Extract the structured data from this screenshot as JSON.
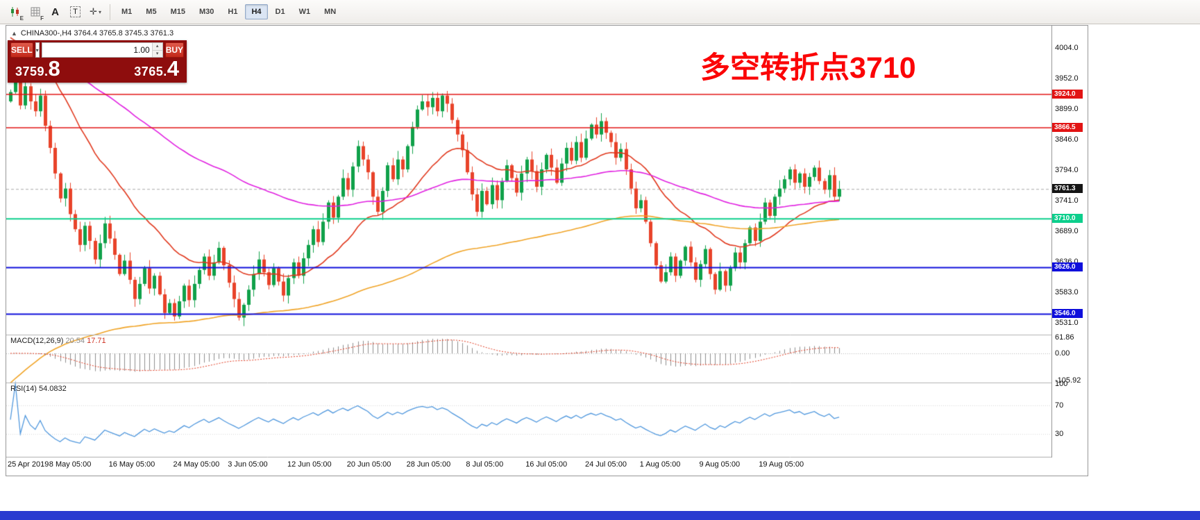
{
  "toolbar": {
    "ea_sub": "E",
    "grid_sub": "F",
    "a_label": "A",
    "t_label": "T",
    "timeframes": [
      {
        "label": "M1"
      },
      {
        "label": "M5"
      },
      {
        "label": "M15"
      },
      {
        "label": "M30"
      },
      {
        "label": "H1"
      },
      {
        "label": "H4",
        "active": true
      },
      {
        "label": "D1"
      },
      {
        "label": "W1"
      },
      {
        "label": "MN"
      }
    ]
  },
  "chart": {
    "symbol_line": "CHINA300-,H4  3764.4 3765.8 3745.3 3761.3",
    "annotation": "多空转折点3710"
  },
  "trade_panel": {
    "sell_label": "SELL",
    "buy_label": "BUY",
    "volume": "1.00",
    "sell_price_main": "3759.",
    "sell_price_big": "8",
    "buy_price_main": "3765.",
    "buy_price_big": "4"
  },
  "macd": {
    "name": "MACD(12,26,9)",
    "value_main": "20.54",
    "value_signal": "17.71",
    "ticks": [
      "61.86",
      "0.00",
      "-105.92"
    ]
  },
  "rsi": {
    "name": "RSI(14)",
    "value": "54.0832",
    "ticks": [
      "100",
      "70",
      "30"
    ],
    "levels": [
      70,
      30
    ]
  },
  "chart_data": {
    "type": "candlestick",
    "symbol": "CHINA300-",
    "timeframe": "H4",
    "first_open": 3912,
    "closes": [
      3928,
      3948,
      3905,
      3938,
      3912,
      3895,
      3922,
      3870,
      3832,
      3788,
      3745,
      3762,
      3718,
      3692,
      3665,
      3698,
      3672,
      3640,
      3668,
      3702,
      3676,
      3648,
      3615,
      3638,
      3605,
      3572,
      3598,
      3625,
      3590,
      3612,
      3580,
      3548,
      3565,
      3542,
      3568,
      3595,
      3570,
      3598,
      3622,
      3645,
      3612,
      3635,
      3660,
      3630,
      3600,
      3572,
      3540,
      3562,
      3588,
      3615,
      3640,
      3618,
      3596,
      3625,
      3602,
      3578,
      3608,
      3635,
      3612,
      3642,
      3665,
      3692,
      3670,
      3705,
      3738,
      3712,
      3748,
      3780,
      3760,
      3800,
      3835,
      3812,
      3790,
      3748,
      3722,
      3758,
      3802,
      3778,
      3812,
      3795,
      3835,
      3868,
      3898,
      3912,
      3902,
      3918,
      3895,
      3922,
      3908,
      3880,
      3855,
      3828,
      3790,
      3752,
      3722,
      3758,
      3735,
      3768,
      3742,
      3775,
      3802,
      3780,
      3755,
      3788,
      3812,
      3792,
      3765,
      3795,
      3820,
      3798,
      3772,
      3805,
      3832,
      3810,
      3842,
      3815,
      3848,
      3872,
      3855,
      3878,
      3858,
      3842,
      3815,
      3830,
      3795,
      3762,
      3728,
      3742,
      3705,
      3668,
      3630,
      3602,
      3618,
      3645,
      3612,
      3638,
      3662,
      3635,
      3605,
      3632,
      3658,
      3615,
      3588,
      3620,
      3595,
      3625,
      3652,
      3635,
      3668,
      3695,
      3672,
      3705,
      3738,
      3715,
      3748,
      3762,
      3778,
      3795,
      3772,
      3788,
      3765,
      3782,
      3798,
      3775,
      3760,
      3785,
      3748,
      3761.3
    ],
    "colors": {
      "up": "#10a14a",
      "down": "#e8432a"
    },
    "moving_averages": [
      {
        "name": "ma-red",
        "color": "#e0371c",
        "alpha": 0.08,
        "init": 4030,
        "width": 1.6
      },
      {
        "name": "ma-magenta",
        "color": "#e01fe0",
        "alpha": 0.022,
        "init": 4005,
        "width": 1.6
      },
      {
        "name": "ma-orange",
        "color": "#f0a325",
        "alpha": 0.015,
        "init": 3420,
        "width": 1.6
      }
    ],
    "price_ticks": [
      "4004.0",
      "3952.0",
      "3899.0",
      "3846.0",
      "3794.0",
      "3741.0",
      "3689.0",
      "3636.0",
      "3583.0",
      "3531.0"
    ],
    "levels": [
      {
        "price": 3924.0,
        "label": "3924.0",
        "color": "#e21414",
        "width": 1.5
      },
      {
        "price": 3866.5,
        "label": "3866.5",
        "color": "#e21414",
        "width": 1.5
      },
      {
        "price": 3710.0,
        "label": "3710.0",
        "color": "#0ccf8c",
        "width": 2
      },
      {
        "price": 3626.0,
        "label": "3626.0",
        "color": "#0f0fdc",
        "width": 2
      },
      {
        "price": 3546.0,
        "label": "3546.0",
        "color": "#0f0fdc",
        "width": 2
      }
    ],
    "current": {
      "price": 3761.3,
      "label": "3761.3",
      "badge_color": "#151515"
    },
    "x_labels": [
      {
        "text": "25 Apr 2019",
        "i": 0
      },
      {
        "text": "8 May 05:00",
        "i": 12
      },
      {
        "text": "16 May 05:00",
        "i": 24
      },
      {
        "text": "24 May 05:00",
        "i": 37
      },
      {
        "text": "3 Jun 05:00",
        "i": 48
      },
      {
        "text": "12 Jun 05:00",
        "i": 60
      },
      {
        "text": "20 Jun 05:00",
        "i": 72
      },
      {
        "text": "28 Jun 05:00",
        "i": 84
      },
      {
        "text": "8 Jul 05:00",
        "i": 96
      },
      {
        "text": "16 Jul 05:00",
        "i": 108
      },
      {
        "text": "24 Jul 05:00",
        "i": 120
      },
      {
        "text": "1 Aug 05:00",
        "i": 131
      },
      {
        "text": "9 Aug 05:00",
        "i": 143
      },
      {
        "text": "19 Aug 05:00",
        "i": 155
      }
    ]
  }
}
